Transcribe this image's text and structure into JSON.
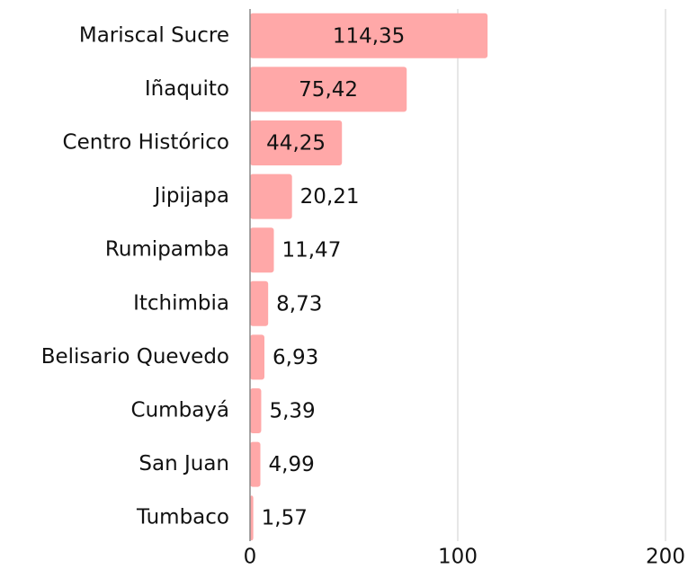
{
  "chart_data": {
    "type": "bar",
    "orientation": "horizontal",
    "categories": [
      "Mariscal Sucre",
      "Iñaquito",
      "Centro Histórico",
      "Jipijapa",
      "Rumipamba",
      "Itchimbia",
      "Belisario Quevedo",
      "Cumbayá",
      "San Juan",
      "Tumbaco"
    ],
    "values": [
      114.35,
      75.42,
      44.25,
      20.21,
      11.47,
      8.73,
      6.93,
      5.39,
      4.99,
      1.57
    ],
    "value_labels": [
      "114,35",
      "75,42",
      "44,25",
      "20,21",
      "11,47",
      "8,73",
      "6,93",
      "5,39",
      "4,99",
      "1,57"
    ],
    "color": "#ffa8a8",
    "xlim": [
      0,
      200
    ],
    "xticks": [
      0,
      100,
      200
    ],
    "grid": true
  }
}
